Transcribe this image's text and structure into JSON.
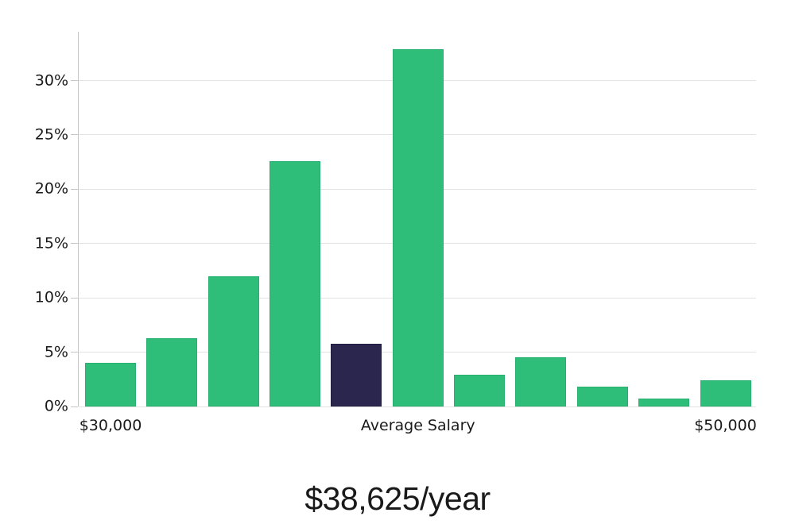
{
  "chart_data": {
    "type": "bar",
    "title": "$38,625/year",
    "values": [
      4.0,
      6.3,
      12.0,
      22.6,
      5.8,
      32.9,
      2.9,
      4.5,
      1.8,
      0.7,
      2.4
    ],
    "highlight_index": 4,
    "y_ticks": [
      0,
      5,
      10,
      15,
      20,
      25,
      30
    ],
    "y_tick_suffix": "%",
    "ylim": [
      0,
      34.5
    ],
    "x_tick_labels": [
      {
        "bar_index": 0,
        "label": "$30,000"
      },
      {
        "bar_index": 5,
        "label": "Average Salary"
      },
      {
        "bar_index": 10,
        "label": "$50,000"
      }
    ],
    "legend": [],
    "grid": "horizontal",
    "colors": {
      "bar": "#2EBE7A",
      "bar_border": "#29AF6F",
      "highlight": "#2A264E",
      "highlight_border": "#211D3F",
      "gridline": "#E3E3E3",
      "axis": "#C5C5C5",
      "text": "#1A1A1A"
    }
  }
}
